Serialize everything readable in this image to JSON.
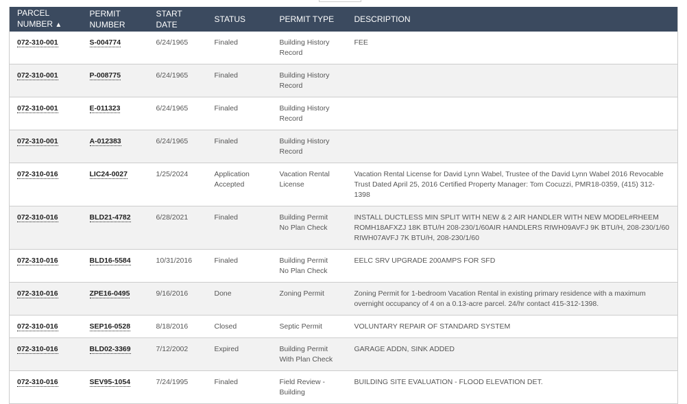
{
  "headers": {
    "parcel": "PARCEL NUMBER",
    "sort_indicator": "▲",
    "permit": "PERMIT NUMBER",
    "start": "START DATE",
    "status": "STATUS",
    "type": "PERMIT TYPE",
    "description": "DESCRIPTION"
  },
  "rows": [
    {
      "parcel": "072-310-001",
      "permit": "S-004774",
      "start": "6/24/1965",
      "status": "Finaled",
      "type": "Building History Record",
      "description": "FEE"
    },
    {
      "parcel": "072-310-001",
      "permit": "P-008775",
      "start": "6/24/1965",
      "status": "Finaled",
      "type": "Building History Record",
      "description": ""
    },
    {
      "parcel": "072-310-001",
      "permit": "E-011323",
      "start": "6/24/1965",
      "status": "Finaled",
      "type": "Building History Record",
      "description": ""
    },
    {
      "parcel": "072-310-001",
      "permit": "A-012383",
      "start": "6/24/1965",
      "status": "Finaled",
      "type": "Building History Record",
      "description": ""
    },
    {
      "parcel": "072-310-016",
      "permit": "LIC24-0027",
      "start": "1/25/2024",
      "status": "Application Accepted",
      "type": "Vacation Rental License",
      "description": "Vacation Rental License for David Lynn Wabel, Trustee of the David Lynn Wabel 2016 Revocable Trust Dated April 25, 2016 Certified Property Manager: Tom Cocuzzi, PMR18-0359, (415) 312-1398"
    },
    {
      "parcel": "072-310-016",
      "permit": "BLD21-4782",
      "start": "6/28/2021",
      "status": "Finaled",
      "type": "Building Permit No Plan Check",
      "description": "INSTALL DUCTLESS MIN SPLIT WITH NEW & 2 AIR HANDLER WITH NEW MODEL#RHEEM ROMH18AFXZJ 18K BTU/H 208-230/1/60AIR HANDLERS RIWH09AVFJ 9K BTU/H, 208-230/1/60 RIWH07AVFJ 7K BTU/H, 208-230/1/60"
    },
    {
      "parcel": "072-310-016",
      "permit": "BLD16-5584",
      "start": "10/31/2016",
      "status": "Finaled",
      "type": "Building Permit No Plan Check",
      "description": "EELC SRV UPGRADE 200AMPS FOR SFD"
    },
    {
      "parcel": "072-310-016",
      "permit": "ZPE16-0495",
      "start": "9/16/2016",
      "status": "Done",
      "type": "Zoning Permit",
      "description": "Zoning Permit for 1-bedroom Vacation Rental in existing primary residence with a maximum overnight occupancy of 4 on a 0.13-acre parcel. 24/hr contact 415-312-1398."
    },
    {
      "parcel": "072-310-016",
      "permit": "SEP16-0528",
      "start": "8/18/2016",
      "status": "Closed",
      "type": "Septic Permit",
      "description": "VOLUNTARY REPAIR OF STANDARD SYSTEM"
    },
    {
      "parcel": "072-310-016",
      "permit": "BLD02-3369",
      "start": "7/12/2002",
      "status": "Expired",
      "type": "Building Permit With Plan Check",
      "description": "GARAGE ADDN, SINK ADDED"
    },
    {
      "parcel": "072-310-016",
      "permit": "SEV95-1054",
      "start": "7/24/1995",
      "status": "Finaled",
      "type": "Field Review - Building",
      "description": "BUILDING SITE EVALUATION - FLOOD ELEVATION DET."
    }
  ]
}
